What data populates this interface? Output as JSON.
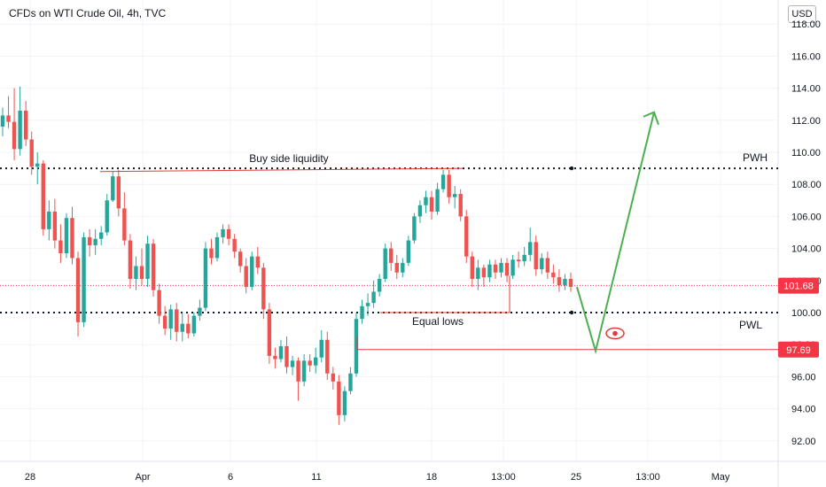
{
  "header": {
    "title": "CFDs on WTI Crude Oil, 4h, TVC",
    "currency": "USD"
  },
  "colors": {
    "up": "#26a69a",
    "down": "#ef5350",
    "annotation_red": "#e53935",
    "arrow_green": "#4caf50",
    "grid": "#f0f3fa",
    "axis_text": "#131722"
  },
  "chart_data": {
    "type": "candlestick",
    "y_axis_ticks": [
      "118.00",
      "116.00",
      "114.00",
      "112.00",
      "110.00",
      "108.00",
      "106.00",
      "104.00",
      "102.00",
      "100.00",
      "98.00",
      "96.00",
      "94.00",
      "92.00"
    ],
    "ylim": [
      90.2,
      118.8
    ],
    "x_axis_ticks": [
      "28",
      "Apr",
      "6",
      "11",
      "18",
      "13:00",
      "25",
      "13:00",
      "May"
    ],
    "price_badges": [
      {
        "value": "101.68",
        "color": "#f23645"
      },
      {
        "value": "97.69",
        "color": "#f23645"
      }
    ],
    "levels": [
      {
        "name": "PWH",
        "value": 109.0,
        "style": "dotted"
      },
      {
        "name": "PWL",
        "value": 100.0,
        "style": "dotted"
      }
    ],
    "annotations": {
      "buy_side_liquidity": "Buy side liquidity",
      "equal_lows": "Equal lows",
      "pwh": "PWH",
      "pwl": "PWL"
    },
    "current_price": 101.68,
    "target_line": 97.69,
    "projection": [
      {
        "label": "down",
        "from": 101.6,
        "to": 97.6
      },
      {
        "label": "up",
        "from": 97.6,
        "to": 112.5
      }
    ],
    "candles": [
      [
        111.6,
        112.8,
        111.0,
        112.3
      ],
      [
        112.3,
        113.5,
        111.5,
        111.9
      ],
      [
        111.9,
        114.0,
        109.5,
        110.2
      ],
      [
        110.2,
        114.1,
        109.8,
        112.6
      ],
      [
        112.6,
        113.2,
        110.4,
        110.8
      ],
      [
        110.8,
        111.3,
        108.6,
        109.1
      ],
      [
        109.1,
        110.0,
        108.0,
        109.3
      ],
      [
        109.3,
        109.5,
        104.8,
        105.2
      ],
      [
        105.2,
        107.0,
        104.5,
        106.3
      ],
      [
        106.3,
        107.1,
        104.0,
        104.5
      ],
      [
        104.5,
        105.5,
        103.1,
        103.7
      ],
      [
        103.7,
        106.2,
        103.4,
        105.9
      ],
      [
        105.9,
        106.6,
        103.0,
        103.4
      ],
      [
        103.4,
        103.8,
        98.5,
        99.4
      ],
      [
        99.4,
        105.0,
        99.1,
        104.7
      ],
      [
        104.7,
        105.2,
        103.5,
        104.2
      ],
      [
        104.2,
        105.2,
        103.6,
        104.6
      ],
      [
        104.6,
        105.4,
        104.2,
        105.0
      ],
      [
        105.0,
        107.4,
        104.8,
        107.0
      ],
      [
        107.0,
        108.8,
        106.9,
        108.5
      ],
      [
        108.5,
        108.9,
        106.0,
        106.5
      ],
      [
        106.5,
        107.5,
        104.2,
        104.5
      ],
      [
        104.5,
        104.9,
        101.5,
        102.1
      ],
      [
        102.1,
        103.5,
        101.4,
        102.9
      ],
      [
        102.9,
        104.0,
        101.7,
        102.1
      ],
      [
        102.1,
        104.8,
        101.6,
        104.3
      ],
      [
        104.3,
        104.6,
        101.0,
        101.4
      ],
      [
        101.4,
        101.8,
        99.3,
        99.8
      ],
      [
        99.8,
        100.4,
        98.6,
        99.0
      ],
      [
        99.0,
        100.5,
        98.3,
        100.2
      ],
      [
        100.2,
        100.6,
        98.2,
        98.8
      ],
      [
        98.8,
        100.0,
        98.2,
        99.3
      ],
      [
        99.3,
        99.9,
        98.4,
        98.7
      ],
      [
        98.7,
        100.0,
        98.5,
        99.8
      ],
      [
        99.8,
        100.8,
        99.5,
        100.3
      ],
      [
        100.3,
        104.4,
        100.1,
        104.0
      ],
      [
        104.0,
        104.6,
        103.0,
        103.4
      ],
      [
        103.4,
        105.0,
        103.2,
        104.7
      ],
      [
        104.7,
        105.5,
        104.3,
        105.2
      ],
      [
        105.2,
        105.5,
        104.2,
        104.6
      ],
      [
        104.6,
        104.9,
        103.4,
        103.8
      ],
      [
        103.8,
        104.0,
        102.5,
        102.9
      ],
      [
        102.9,
        103.4,
        101.2,
        101.6
      ],
      [
        101.6,
        103.8,
        101.4,
        103.5
      ],
      [
        103.5,
        104.1,
        102.4,
        102.8
      ],
      [
        102.8,
        103.1,
        99.6,
        100.2
      ],
      [
        100.2,
        100.6,
        96.8,
        97.3
      ],
      [
        97.3,
        97.8,
        96.5,
        97.1
      ],
      [
        97.1,
        98.3,
        96.9,
        97.9
      ],
      [
        97.9,
        98.5,
        96.2,
        96.6
      ],
      [
        96.6,
        97.3,
        96.1,
        97.0
      ],
      [
        97.0,
        97.2,
        94.5,
        95.7
      ],
      [
        95.7,
        97.4,
        95.4,
        97.0
      ],
      [
        97.0,
        97.4,
        96.3,
        96.7
      ],
      [
        96.7,
        97.8,
        96.2,
        97.2
      ],
      [
        97.2,
        98.9,
        96.9,
        98.3
      ],
      [
        98.3,
        98.8,
        95.8,
        96.2
      ],
      [
        96.2,
        96.6,
        95.2,
        95.7
      ],
      [
        95.7,
        96.1,
        93.0,
        93.6
      ],
      [
        93.6,
        95.4,
        93.2,
        95.1
      ],
      [
        95.1,
        96.6,
        94.9,
        96.2
      ],
      [
        96.2,
        100.0,
        96.0,
        99.6
      ],
      [
        99.6,
        100.8,
        99.3,
        100.4
      ],
      [
        100.4,
        101.2,
        99.8,
        100.6
      ],
      [
        100.6,
        102.0,
        100.3,
        101.3
      ],
      [
        101.3,
        102.4,
        101.0,
        102.1
      ],
      [
        102.1,
        104.3,
        101.9,
        104.0
      ],
      [
        104.0,
        104.4,
        102.6,
        103.1
      ],
      [
        103.1,
        103.6,
        102.1,
        102.5
      ],
      [
        102.5,
        103.4,
        102.2,
        103.1
      ],
      [
        103.1,
        104.8,
        102.9,
        104.5
      ],
      [
        104.5,
        106.2,
        104.3,
        106.0
      ],
      [
        106.0,
        107.0,
        105.6,
        106.7
      ],
      [
        106.7,
        107.6,
        106.2,
        107.2
      ],
      [
        107.2,
        107.6,
        105.8,
        106.3
      ],
      [
        106.3,
        108.1,
        106.1,
        107.7
      ],
      [
        107.7,
        108.9,
        107.5,
        108.6
      ],
      [
        108.6,
        108.9,
        106.8,
        107.2
      ],
      [
        107.2,
        107.9,
        106.5,
        107.4
      ],
      [
        107.4,
        107.7,
        105.7,
        106.0
      ],
      [
        106.0,
        106.4,
        103.1,
        103.5
      ],
      [
        103.5,
        103.8,
        101.6,
        102.1
      ],
      [
        102.1,
        103.3,
        101.4,
        102.8
      ],
      [
        102.8,
        103.0,
        101.6,
        102.2
      ],
      [
        102.2,
        103.3,
        101.9,
        103.0
      ],
      [
        103.0,
        103.3,
        102.1,
        102.5
      ],
      [
        102.5,
        103.4,
        102.2,
        103.1
      ],
      [
        103.1,
        103.4,
        101.9,
        102.3
      ],
      [
        102.3,
        103.6,
        102.1,
        103.3
      ],
      [
        103.3,
        103.8,
        102.8,
        103.2
      ],
      [
        103.2,
        104.1,
        102.9,
        103.6
      ],
      [
        103.6,
        105.3,
        103.2,
        104.4
      ],
      [
        104.4,
        104.8,
        102.3,
        102.7
      ],
      [
        102.7,
        103.7,
        102.4,
        103.4
      ],
      [
        103.4,
        103.8,
        102.1,
        102.5
      ],
      [
        102.5,
        103.0,
        101.8,
        102.2
      ],
      [
        102.2,
        102.7,
        101.3,
        101.7
      ],
      [
        101.7,
        102.4,
        101.4,
        102.1
      ],
      [
        102.1,
        102.5,
        101.3,
        101.6
      ]
    ]
  }
}
